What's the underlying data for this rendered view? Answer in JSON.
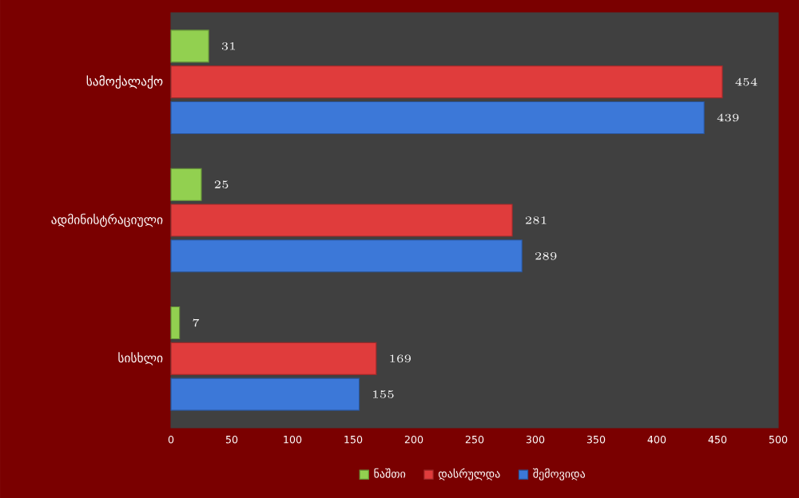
{
  "chart_data": {
    "type": "bar",
    "orientation": "horizontal",
    "categories": [
      "სამოქალაქო",
      "ადმინისტრაციული",
      "სისხლი"
    ],
    "series": [
      {
        "name": "ნაშთი",
        "color": "#92d050",
        "values": [
          31,
          25,
          7
        ]
      },
      {
        "name": "დასრულდა",
        "color": "#e03c3c",
        "values": [
          454,
          281,
          169
        ]
      },
      {
        "name": "შემოვიდა",
        "color": "#3c78d8",
        "values": [
          439,
          289,
          155
        ]
      }
    ],
    "xlim": [
      0,
      500
    ],
    "xticks": [
      0,
      50,
      100,
      150,
      200,
      250,
      300,
      350,
      400,
      450,
      500
    ],
    "data_labels": true,
    "legend": "bottom"
  }
}
